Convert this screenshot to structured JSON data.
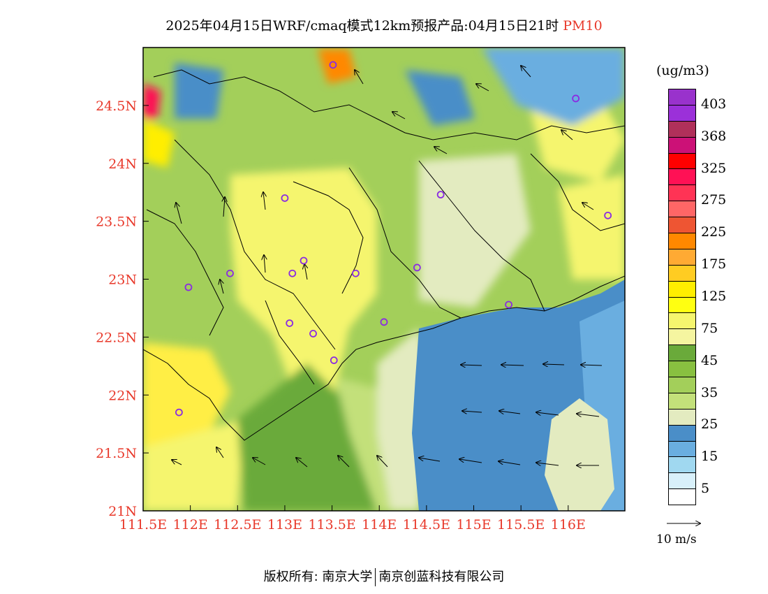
{
  "title": {
    "main": "2025年04月15日WRF/cmaq模式12km预报产品:04月15日21时",
    "pollutant": "PM10"
  },
  "colors": {
    "axis_label": "#e8382a",
    "sea_dark": "#4a8ec8",
    "sea_light": "#6aaee0",
    "land_yellow": "#f5f56e",
    "land_green": "#a3cf5a",
    "station_marker": "#8a2be2"
  },
  "map": {
    "lon_range": [
      111.5,
      116.6
    ],
    "lat_range": [
      21.0,
      25.0
    ],
    "x_ticks": [
      "111.5E",
      "112E",
      "112.5E",
      "113E",
      "113.5E",
      "114E",
      "114.5E",
      "115E",
      "115.5E",
      "116E"
    ],
    "y_ticks": [
      "21N",
      "21.5N",
      "22N",
      "22.5N",
      "23N",
      "23.5N",
      "24N",
      "24.5N"
    ],
    "stations": [
      {
        "lon": 113.51,
        "lat": 24.85
      },
      {
        "lon": 116.08,
        "lat": 24.56
      },
      {
        "lon": 113.0,
        "lat": 23.7
      },
      {
        "lon": 114.65,
        "lat": 23.73
      },
      {
        "lon": 116.42,
        "lat": 23.55
      },
      {
        "lon": 112.42,
        "lat": 23.05
      },
      {
        "lon": 113.08,
        "lat": 23.05
      },
      {
        "lon": 113.2,
        "lat": 23.16
      },
      {
        "lon": 113.75,
        "lat": 23.05
      },
      {
        "lon": 114.4,
        "lat": 23.1
      },
      {
        "lon": 111.98,
        "lat": 22.93
      },
      {
        "lon": 115.37,
        "lat": 22.78
      },
      {
        "lon": 113.05,
        "lat": 22.62
      },
      {
        "lon": 113.3,
        "lat": 22.53
      },
      {
        "lon": 114.05,
        "lat": 22.63
      },
      {
        "lon": 113.52,
        "lat": 22.3
      },
      {
        "lon": 111.88,
        "lat": 21.85
      }
    ]
  },
  "legend": {
    "unit": "(ug/m3)",
    "segments": [
      "#9932cc",
      "#9b30d9",
      "#b0305a",
      "#cc1177",
      "#ff0000",
      "#ff1155",
      "#ff3355",
      "#ff6666",
      "#ee5533",
      "#ff8800",
      "#ffaa33",
      "#ffcc22",
      "#ffee00",
      "#ffff11",
      "#f5f56e",
      "#f5f5a0",
      "#6aaa3a",
      "#88c040",
      "#a3cf5a",
      "#c3e07a",
      "#e3ebc0",
      "#4a8ec8",
      "#6aaee0",
      "#a0d8f0",
      "#d8f0fa",
      "#ffffff"
    ],
    "labels": [
      "403",
      "368",
      "325",
      "275",
      "225",
      "175",
      "125",
      "75",
      "45",
      "35",
      "25",
      "15",
      "5"
    ]
  },
  "vector_reference": "10 m/s",
  "copyright": {
    "prefix": "版权所有: 南京大学",
    "suffix": "南京创蓝科技有限公司"
  }
}
